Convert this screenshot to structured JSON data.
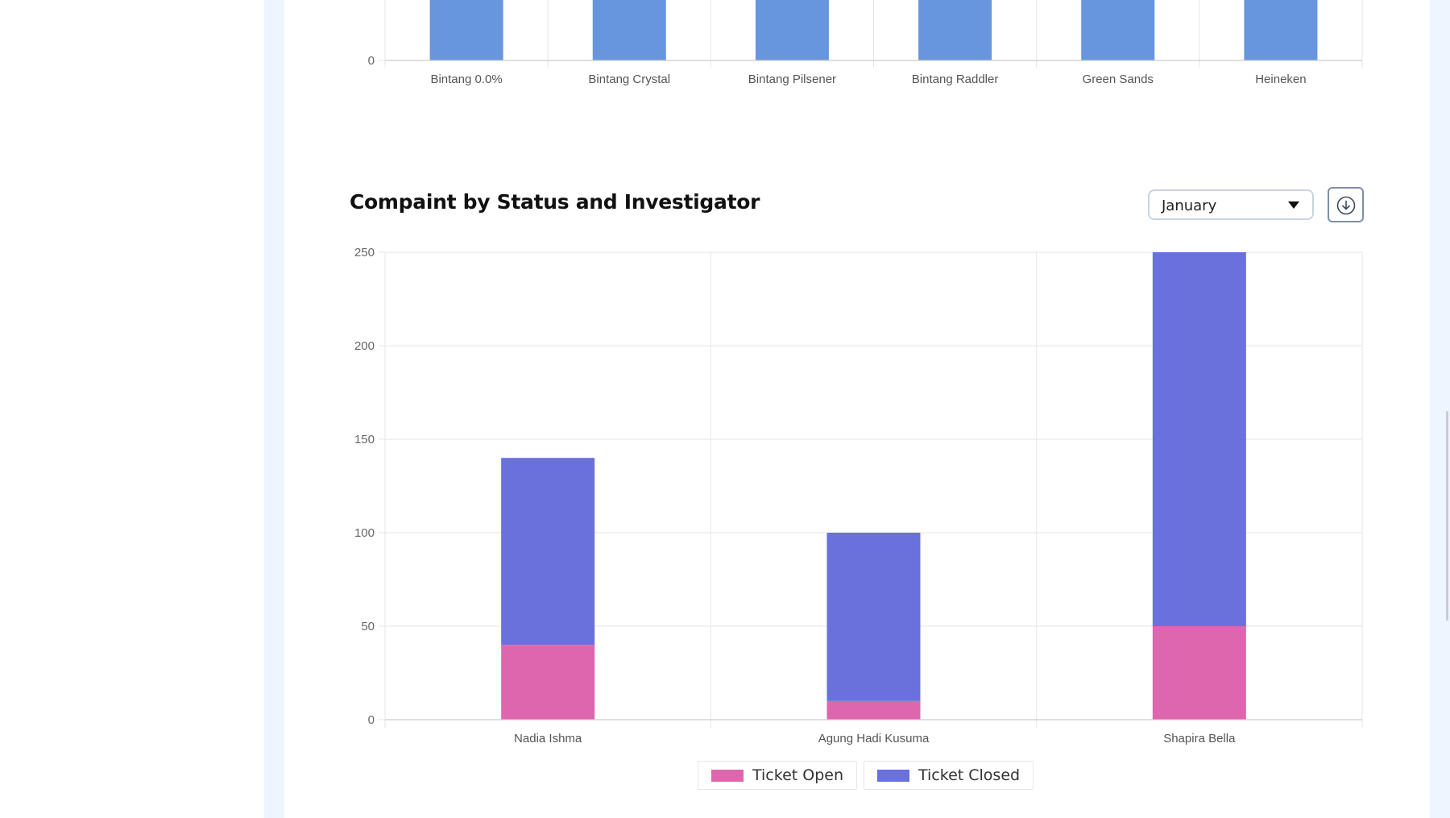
{
  "colors": {
    "page_bg": "#eef5fe",
    "card_bg": "#ffffff",
    "top_bar": "#6795de",
    "ticket_open": "#dd66ae",
    "ticket_closed": "#6a70dc",
    "grid": "#e6e6e6",
    "axis": "#cccccc"
  },
  "top_chart": {
    "y_tick_visible": "0"
  },
  "complaint_section": {
    "title": "Compaint by Status and Investigator",
    "month_filter": {
      "selected": "January"
    },
    "download_icon": "download-circle-icon"
  },
  "legend": [
    {
      "label": "Ticket Open",
      "color_key": "ticket_open"
    },
    {
      "label": "Ticket Closed",
      "color_key": "ticket_closed"
    }
  ],
  "chart_data": [
    {
      "type": "bar",
      "categories": [
        "Bintang 0.0%",
        "Bintang Crystal",
        "Bintang Pilsener",
        "Bintang Raddler",
        "Green Sands",
        "Heineken"
      ],
      "y_ticks": [
        "0"
      ],
      "grid": true,
      "note_visible": "chart is cropped at top; only bar bases and zero baseline visible"
    },
    {
      "type": "bar",
      "stacked": true,
      "title": "Compaint by Status and Investigator",
      "categories": [
        "Nadia Ishma",
        "Agung Hadi Kusuma",
        "Shapira Bella"
      ],
      "series": [
        {
          "name": "Ticket Open",
          "values": [
            40,
            10,
            50
          ]
        },
        {
          "name": "Ticket Closed",
          "values": [
            100,
            90,
            200
          ]
        }
      ],
      "y_ticks": [
        "0",
        "50",
        "100",
        "150",
        "200",
        "250"
      ],
      "ylim": [
        0,
        250
      ],
      "grid": true,
      "legend_placement": "bottom-center"
    }
  ]
}
